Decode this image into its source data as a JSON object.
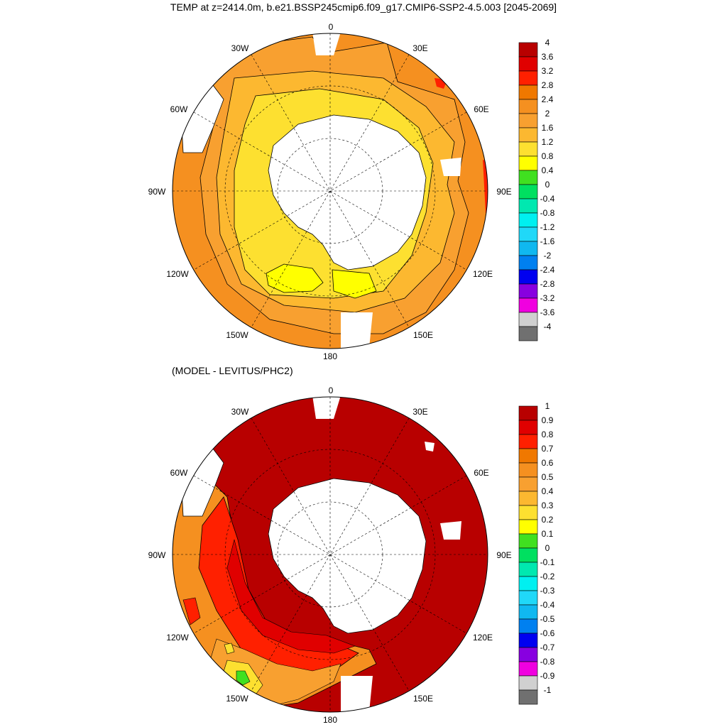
{
  "figure": {
    "title": "TEMP at z=2414.0m, b.e21.BSSP245cmip6.f09_g17.CMIP6-SSP2-4.5.003 [2045-2069]",
    "subtitle": "(MODEL - LEVITUS/PHC2)"
  },
  "longitude_labels": [
    "0",
    "30E",
    "60E",
    "90E",
    "120E",
    "150E",
    "180",
    "150W",
    "120W",
    "90W",
    "60W",
    "30W"
  ],
  "land_color": "#ffffff",
  "top_panel": {
    "colorbar": {
      "labels": [
        "4",
        "3.6",
        "3.2",
        "2.8",
        "2.4",
        "2",
        "1.6",
        "1.2",
        "0.8",
        "0.4",
        "0",
        "-0.4",
        "-0.8",
        "-1.2",
        "-1.6",
        "-2",
        "-2.4",
        "-2.8",
        "-3.2",
        "-3.6",
        "-4"
      ],
      "colors": [
        "#b80000",
        "#e00000",
        "#ff2000",
        "#f07800",
        "#f59020",
        "#f8a030",
        "#fcb830",
        "#fde030",
        "#ffff00",
        "#40e020",
        "#00e060",
        "#00e8b0",
        "#00f0f0",
        "#20d8f8",
        "#10b8f0",
        "#0080f0",
        "#0000f0",
        "#8800e0",
        "#f000e0",
        "#d0d0d0",
        "#707070"
      ]
    }
  },
  "bottom_panel": {
    "colorbar": {
      "labels": [
        "1",
        "0.9",
        "0.8",
        "0.7",
        "0.6",
        "0.5",
        "0.4",
        "0.3",
        "0.2",
        "0.1",
        "0",
        "-0.1",
        "-0.2",
        "-0.3",
        "-0.4",
        "-0.5",
        "-0.6",
        "-0.7",
        "-0.8",
        "-0.9",
        "-1"
      ],
      "colors": [
        "#b80000",
        "#e00000",
        "#ff2000",
        "#f07800",
        "#f59020",
        "#f8a030",
        "#fcb830",
        "#fde030",
        "#ffff00",
        "#40e020",
        "#00e060",
        "#00e8b0",
        "#00f0f0",
        "#20d8f8",
        "#10b8f0",
        "#0080f0",
        "#0000f0",
        "#8800e0",
        "#f000e0",
        "#d0d0d0",
        "#707070"
      ]
    }
  }
}
